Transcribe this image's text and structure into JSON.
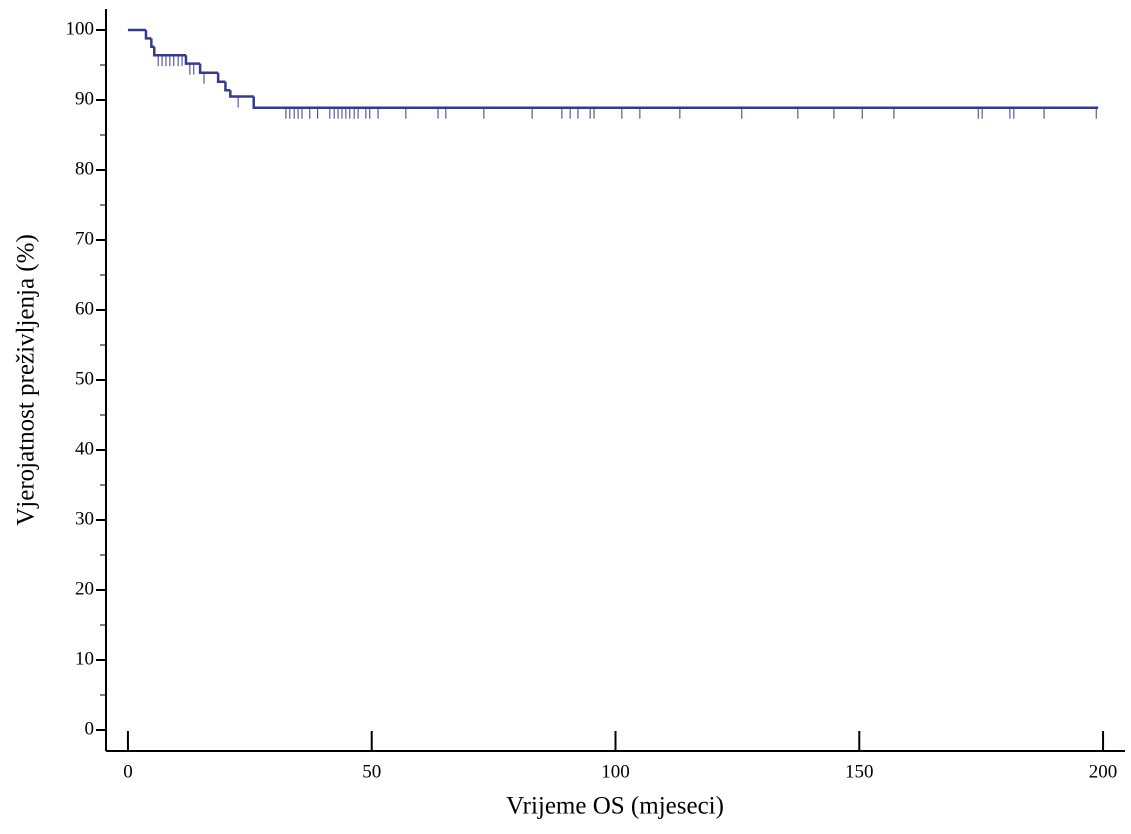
{
  "chart_data": {
    "type": "kaplan-meier",
    "xlabel": "Vrijeme OS (mjeseci)",
    "ylabel": "Vjerojatnost preživljenja (%)",
    "color": "#353a8e",
    "times": [
      0,
      3.7,
      4.8,
      5.4,
      11.9,
      14.8,
      18.5,
      20.0,
      21.0,
      25.8,
      199
    ],
    "survival": [
      100,
      98.8,
      97.6,
      96.4,
      95.2,
      93.9,
      92.6,
      91.4,
      90.5,
      88.9,
      88.9
    ],
    "censored": {
      "times": [
        6.2,
        7.0,
        7.8,
        8.6,
        9.4,
        10.3,
        11.1,
        12.7,
        13.5,
        15.6,
        22.6,
        32.4,
        33.2,
        34.1,
        34.9,
        35.7,
        37.3,
        38.9,
        41.4,
        42.3,
        43.1,
        43.9,
        44.7,
        45.5,
        46.4,
        47.2,
        48.8,
        49.6,
        51.3,
        57.0,
        63.6,
        65.2,
        73.0,
        82.9,
        89.0,
        90.7,
        92.3,
        94.8,
        95.6,
        101.3,
        105.0,
        113.2,
        125.9,
        137.4,
        144.8,
        150.6,
        157.1,
        174.4,
        175.2,
        180.9,
        181.7,
        187.9,
        198.6
      ],
      "survival": [
        96.4,
        96.4,
        96.4,
        96.4,
        96.4,
        96.4,
        96.4,
        95.2,
        95.2,
        93.9,
        90.5,
        88.9,
        88.9,
        88.9,
        88.9,
        88.9,
        88.9,
        88.9,
        88.9,
        88.9,
        88.9,
        88.9,
        88.9,
        88.9,
        88.9,
        88.9,
        88.9,
        88.9,
        88.9,
        88.9,
        88.9,
        88.9,
        88.9,
        88.9,
        88.9,
        88.9,
        88.9,
        88.9,
        88.9,
        88.9,
        88.9,
        88.9,
        88.9,
        88.9,
        88.9,
        88.9,
        88.9,
        88.9,
        88.9,
        88.9,
        88.9,
        88.9,
        88.9
      ]
    },
    "xlim": [
      -4.5,
      204.5
    ],
    "xticks": [
      0,
      50,
      100,
      150,
      200
    ],
    "ylim": [
      -3,
      103
    ],
    "yticks": [
      0,
      10,
      20,
      30,
      40,
      50,
      60,
      70,
      80,
      90,
      100
    ],
    "yminorticks": [
      5,
      15,
      25,
      35,
      45,
      55,
      65,
      75,
      85,
      95
    ]
  }
}
